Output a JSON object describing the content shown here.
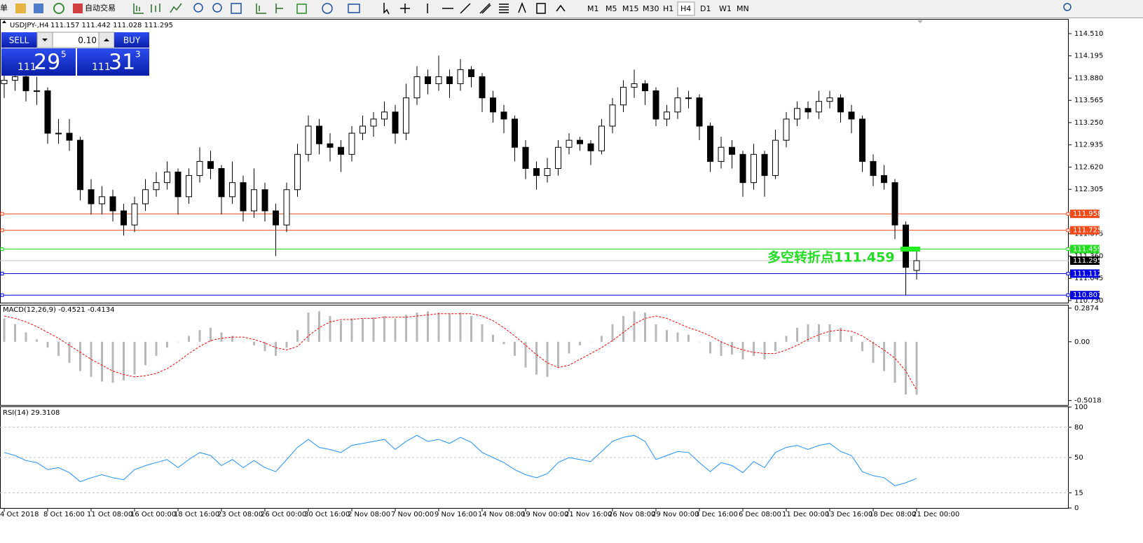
{
  "toolbar": {
    "left_text": "单",
    "auto_trade": "自动交易",
    "timeframes": [
      "M1",
      "M5",
      "M15",
      "M30",
      "H1",
      "H4",
      "D1",
      "W1",
      "MN"
    ]
  },
  "trade_panel": {
    "sell": "SELL",
    "lot": "0.10",
    "buy": "BUY",
    "bid": {
      "big": "111",
      "main": "29",
      "small": "5"
    },
    "ask": {
      "big": "111",
      "main": "31",
      "small": "3"
    }
  },
  "chart_data": [
    {
      "type": "candlestick",
      "title": "USDJPY-,H4",
      "quote": "111.157 111.442 111.028 111.295",
      "categories": [
        "4 Oct 2018",
        null,
        null,
        null,
        "8 Oct 16:00",
        null,
        null,
        null,
        "11 Oct 08:00",
        null,
        null,
        null,
        "16 Oct 00:00",
        null,
        null,
        null,
        "18 Oct 16:00",
        null,
        null,
        null,
        "23 Oct 08:00",
        null,
        null,
        null,
        "26 Oct 00:00",
        null,
        null,
        null,
        "30 Oct 16:00",
        null,
        null,
        null,
        "2 Nov 08:00",
        null,
        null,
        null,
        "7 Nov 00:00",
        null,
        null,
        null,
        "9 Nov 16:00",
        null,
        null,
        null,
        "14 Nov 08:00",
        null,
        null,
        null,
        "19 Nov 00:00",
        null,
        null,
        null,
        "21 Nov 16:00",
        null,
        null,
        null,
        "26 Nov 08:00",
        null,
        null,
        null,
        "29 Nov 00:00",
        null,
        null,
        null,
        "3 Dec 16:00",
        null,
        null,
        null,
        "6 Dec 08:00",
        null,
        null,
        null,
        "11 Dec 00:00",
        null,
        null,
        null,
        "13 Dec 16:00",
        null,
        null,
        null,
        "18 Dec 08:00",
        null,
        null,
        null,
        "21 Dec 00:00"
      ],
      "values": [
        [
          113.8,
          113.95,
          113.6,
          113.85
        ],
        [
          113.85,
          114.0,
          113.7,
          113.9
        ],
        [
          113.9,
          113.95,
          113.55,
          113.7
        ],
        [
          113.7,
          113.9,
          113.5,
          113.7
        ],
        [
          113.7,
          113.75,
          112.95,
          113.1
        ],
        [
          113.1,
          113.3,
          112.95,
          113.1
        ],
        [
          113.1,
          113.3,
          112.85,
          113.0
        ],
        [
          113.0,
          113.05,
          112.15,
          112.3
        ],
        [
          112.3,
          112.45,
          111.95,
          112.1
        ],
        [
          112.1,
          112.35,
          111.95,
          112.2
        ],
        [
          112.2,
          112.3,
          111.85,
          112.0
        ],
        [
          112.0,
          112.1,
          111.65,
          111.8
        ],
        [
          111.8,
          112.2,
          111.7,
          112.1
        ],
        [
          112.1,
          112.45,
          112.0,
          112.3
        ],
        [
          112.3,
          112.55,
          112.2,
          112.4
        ],
        [
          112.4,
          112.7,
          112.3,
          112.55
        ],
        [
          112.55,
          112.6,
          111.95,
          112.2
        ],
        [
          112.2,
          112.6,
          112.1,
          112.5
        ],
        [
          112.5,
          112.9,
          112.4,
          112.7
        ],
        [
          112.7,
          112.85,
          112.45,
          112.6
        ],
        [
          112.6,
          112.65,
          111.95,
          112.2
        ],
        [
          112.2,
          112.7,
          112.1,
          112.4
        ],
        [
          112.4,
          112.5,
          111.85,
          112.0
        ],
        [
          112.0,
          112.6,
          111.9,
          112.3
        ],
        [
          112.3,
          112.4,
          111.85,
          112.0
        ],
        [
          112.0,
          112.1,
          111.36,
          111.8
        ],
        [
          111.8,
          112.4,
          111.7,
          112.3
        ],
        [
          112.3,
          112.95,
          112.2,
          112.8
        ],
        [
          112.8,
          113.35,
          112.7,
          113.2
        ],
        [
          113.2,
          113.3,
          112.8,
          112.95
        ],
        [
          112.95,
          113.1,
          112.7,
          112.9
        ],
        [
          112.9,
          113.0,
          112.55,
          112.8
        ],
        [
          112.8,
          113.2,
          112.7,
          113.1
        ],
        [
          113.1,
          113.35,
          113.0,
          113.2
        ],
        [
          113.2,
          113.4,
          113.05,
          113.3
        ],
        [
          113.3,
          113.55,
          113.2,
          113.4
        ],
        [
          113.4,
          113.5,
          112.95,
          113.1
        ],
        [
          113.1,
          113.8,
          113.0,
          113.6
        ],
        [
          113.6,
          114.05,
          113.5,
          113.9
        ],
        [
          113.9,
          114.0,
          113.65,
          113.8
        ],
        [
          113.8,
          114.2,
          113.7,
          113.9
        ],
        [
          113.9,
          114.0,
          113.6,
          113.8
        ],
        [
          113.8,
          114.15,
          113.7,
          114.0
        ],
        [
          114.0,
          114.05,
          113.75,
          113.9
        ],
        [
          113.9,
          113.95,
          113.4,
          113.6
        ],
        [
          113.6,
          113.7,
          113.25,
          113.4
        ],
        [
          113.4,
          113.5,
          113.1,
          113.3
        ],
        [
          113.3,
          113.35,
          112.7,
          112.9
        ],
        [
          112.9,
          113.0,
          112.45,
          112.6
        ],
        [
          112.6,
          112.7,
          112.3,
          112.5
        ],
        [
          112.5,
          112.75,
          112.4,
          112.6
        ],
        [
          112.6,
          113.0,
          112.5,
          112.9
        ],
        [
          112.9,
          113.1,
          112.8,
          113.0
        ],
        [
          113.0,
          113.05,
          112.85,
          112.95
        ],
        [
          112.95,
          113.0,
          112.65,
          112.85
        ],
        [
          112.85,
          113.3,
          112.8,
          113.2
        ],
        [
          113.2,
          113.6,
          113.1,
          113.5
        ],
        [
          113.5,
          113.85,
          113.4,
          113.75
        ],
        [
          113.75,
          114.0,
          113.6,
          113.8
        ],
        [
          113.8,
          113.85,
          113.5,
          113.7
        ],
        [
          113.7,
          113.75,
          113.2,
          113.3
        ],
        [
          113.3,
          113.5,
          113.2,
          113.4
        ],
        [
          113.4,
          113.75,
          113.3,
          113.6
        ],
        [
          113.6,
          113.7,
          113.45,
          113.6
        ],
        [
          113.6,
          113.65,
          113.0,
          113.2
        ],
        [
          113.2,
          113.25,
          112.55,
          112.7
        ],
        [
          112.7,
          113.05,
          112.6,
          112.9
        ],
        [
          112.9,
          113.0,
          112.6,
          112.8
        ],
        [
          112.8,
          112.85,
          112.2,
          112.4
        ],
        [
          112.4,
          112.95,
          112.3,
          112.8
        ],
        [
          112.8,
          112.85,
          112.2,
          112.5
        ],
        [
          112.5,
          113.15,
          112.45,
          113.0
        ],
        [
          113.0,
          113.4,
          112.9,
          113.3
        ],
        [
          113.3,
          113.55,
          113.2,
          113.45
        ],
        [
          113.45,
          113.55,
          113.3,
          113.4
        ],
        [
          113.4,
          113.7,
          113.3,
          113.55
        ],
        [
          113.55,
          113.7,
          113.45,
          113.6
        ],
        [
          113.6,
          113.65,
          113.25,
          113.4
        ],
        [
          113.4,
          113.5,
          113.1,
          113.3
        ],
        [
          113.3,
          113.35,
          112.55,
          112.7
        ],
        [
          112.7,
          112.8,
          112.35,
          112.5
        ],
        [
          112.5,
          112.65,
          112.3,
          112.4
        ],
        [
          112.4,
          112.45,
          111.6,
          111.8
        ],
        [
          111.8,
          111.85,
          110.807,
          111.2
        ],
        [
          111.157,
          111.442,
          111.028,
          111.295
        ]
      ],
      "up_color": "#ffffff",
      "down_color": "#000000",
      "ylim": [
        110.7,
        114.718
      ],
      "yticks": [
        {
          "value": 114.51,
          "label": "114.510"
        },
        {
          "value": 114.195,
          "label": "114.195"
        },
        {
          "value": 113.88,
          "label": "113.880"
        },
        {
          "value": 113.565,
          "label": "113.565"
        },
        {
          "value": 113.25,
          "label": "113.250"
        },
        {
          "value": 112.935,
          "label": "112.935"
        },
        {
          "value": 112.62,
          "label": "112.620"
        },
        {
          "value": 112.305,
          "label": "112.305"
        },
        {
          "value": 111.675,
          "label": "111.675"
        },
        {
          "value": 111.36,
          "label": "111.360"
        },
        {
          "value": 111.045,
          "label": "111.045"
        },
        {
          "value": 110.73,
          "label": "110.730"
        }
      ],
      "levels": [
        {
          "value": 111.958,
          "label": "111.958",
          "color": "#f04a1a"
        },
        {
          "value": 111.725,
          "label": "111.725",
          "color": "#f04a1a"
        },
        {
          "value": 111.459,
          "label": "111.459",
          "color": "#22dd22"
        },
        {
          "value": 111.112,
          "label": "111.112",
          "color": "#0000e0"
        },
        {
          "value": 110.807,
          "label": "110.807",
          "color": "#0000e0"
        }
      ],
      "current": {
        "value": 111.295,
        "label": "111.295"
      },
      "annotation": {
        "text": "多空转折点111.459",
        "color": "#22dd22"
      }
    },
    {
      "type": "macd",
      "title": "MACD(12,26,9) -0.4521 -0.4134",
      "values": [
        0.2,
        0.15,
        0.08,
        0.02,
        -0.05,
        -0.12,
        -0.18,
        -0.25,
        -0.3,
        -0.34,
        -0.35,
        -0.33,
        -0.28,
        -0.2,
        -0.12,
        -0.05,
        0.0,
        0.05,
        0.1,
        0.12,
        0.08,
        0.05,
        0.0,
        -0.03,
        -0.08,
        -0.12,
        -0.05,
        0.1,
        0.25,
        0.26,
        0.22,
        0.18,
        0.2,
        0.2,
        0.21,
        0.22,
        0.2,
        0.23,
        0.25,
        0.26,
        0.25,
        0.24,
        0.25,
        0.22,
        0.15,
        0.06,
        -0.02,
        -0.12,
        -0.22,
        -0.28,
        -0.3,
        -0.22,
        -0.1,
        -0.03,
        0.0,
        0.05,
        0.15,
        0.22,
        0.26,
        0.25,
        0.15,
        0.1,
        0.08,
        0.06,
        0.0,
        -0.1,
        -0.12,
        -0.11,
        -0.15,
        -0.12,
        -0.15,
        -0.08,
        0.05,
        0.12,
        0.15,
        0.15,
        0.15,
        0.12,
        0.05,
        -0.08,
        -0.18,
        -0.25,
        -0.35,
        -0.45,
        -0.4521
      ],
      "signal": [
        0.22,
        0.2,
        0.17,
        0.13,
        0.08,
        0.03,
        -0.03,
        -0.09,
        -0.15,
        -0.2,
        -0.25,
        -0.28,
        -0.3,
        -0.29,
        -0.27,
        -0.23,
        -0.17,
        -0.1,
        -0.04,
        0.01,
        0.03,
        0.04,
        0.04,
        0.02,
        -0.01,
        -0.05,
        -0.07,
        -0.04,
        0.05,
        0.12,
        0.17,
        0.19,
        0.19,
        0.2,
        0.2,
        0.21,
        0.21,
        0.21,
        0.22,
        0.23,
        0.24,
        0.24,
        0.24,
        0.24,
        0.22,
        0.18,
        0.12,
        0.05,
        -0.03,
        -0.11,
        -0.18,
        -0.22,
        -0.2,
        -0.15,
        -0.1,
        -0.05,
        0.01,
        0.08,
        0.15,
        0.2,
        0.22,
        0.2,
        0.16,
        0.12,
        0.09,
        0.05,
        0.0,
        -0.04,
        -0.07,
        -0.09,
        -0.1,
        -0.1,
        -0.07,
        -0.03,
        0.02,
        0.06,
        0.09,
        0.1,
        0.09,
        0.05,
        -0.01,
        -0.07,
        -0.14,
        -0.25,
        -0.4134
      ],
      "color": "#b8b8b8",
      "signal_color": "#ff0000",
      "ylim": [
        -0.54,
        0.31
      ],
      "yticks": [
        0.2874,
        {
          "value": 0,
          "label": "0.00"
        },
        -0.5018
      ]
    },
    {
      "type": "line",
      "title": "RSI(14) 29.3108",
      "values": [
        55,
        52,
        47,
        45,
        38,
        40,
        35,
        26,
        30,
        33,
        30,
        28,
        38,
        42,
        45,
        48,
        40,
        48,
        55,
        52,
        42,
        48,
        40,
        47,
        40,
        36,
        48,
        60,
        68,
        60,
        58,
        55,
        62,
        64,
        66,
        68,
        58,
        66,
        72,
        66,
        68,
        64,
        70,
        65,
        55,
        50,
        45,
        38,
        33,
        30,
        34,
        45,
        50,
        48,
        46,
        56,
        66,
        70,
        72,
        66,
        48,
        52,
        56,
        55,
        45,
        36,
        45,
        42,
        35,
        46,
        40,
        55,
        60,
        62,
        58,
        62,
        64,
        56,
        52,
        36,
        32,
        30,
        22,
        25,
        29.3108
      ],
      "color": "#1e90ff",
      "ylim": [
        0,
        100
      ],
      "yticks": [
        100,
        80,
        50,
        15,
        0
      ],
      "levels": [
        80,
        50,
        15
      ]
    }
  ]
}
